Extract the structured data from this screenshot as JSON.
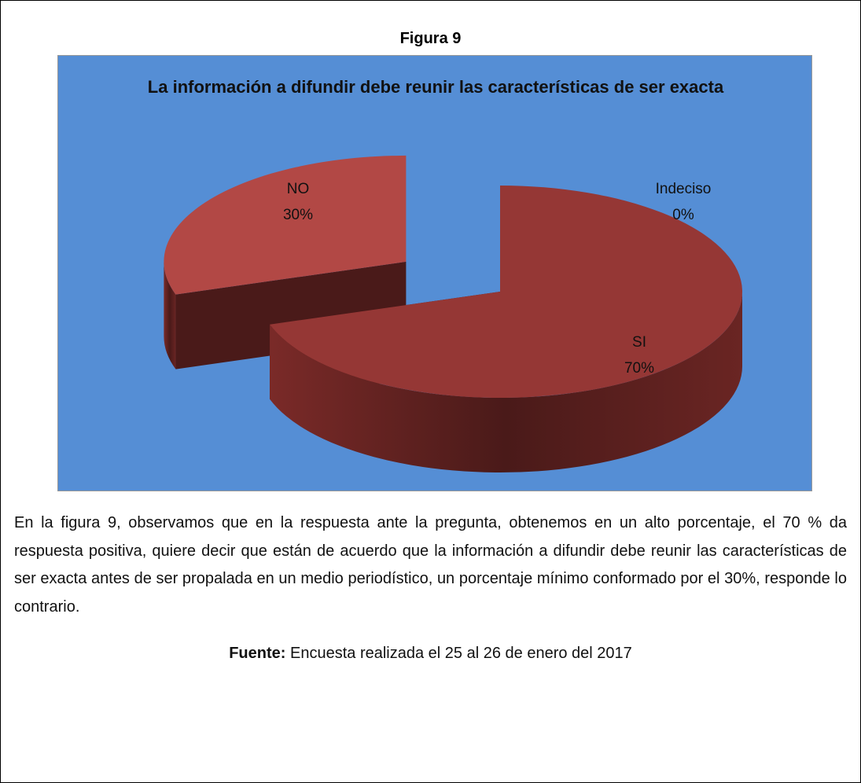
{
  "figure_label": "Figura 9",
  "chart_data": {
    "type": "pie",
    "title": "La información a difundir debe reunir las características de ser exacta",
    "categories": [
      "SI",
      "NO",
      "Indeciso"
    ],
    "values": [
      70,
      30,
      0
    ],
    "value_labels": [
      "70%",
      "30%",
      "0%"
    ],
    "colors": [
      "#953735",
      "#b24845",
      "#4f81bd"
    ],
    "background": "#558ed5"
  },
  "paragraph": "En la figura 9, observamos que en la respuesta ante la pregunta, obtenemos en un alto porcentaje, el 70 % da respuesta positiva, quiere decir que están de acuerdo que  la información a difundir debe reunir las características de ser exacta antes de ser propalada en un medio periodístico, un porcentaje mínimo conformado por el 30%, responde lo contrario.",
  "source": {
    "label": "Fuente:",
    "text": "Encuesta realizada el 25 al 26 de enero del 2017"
  }
}
